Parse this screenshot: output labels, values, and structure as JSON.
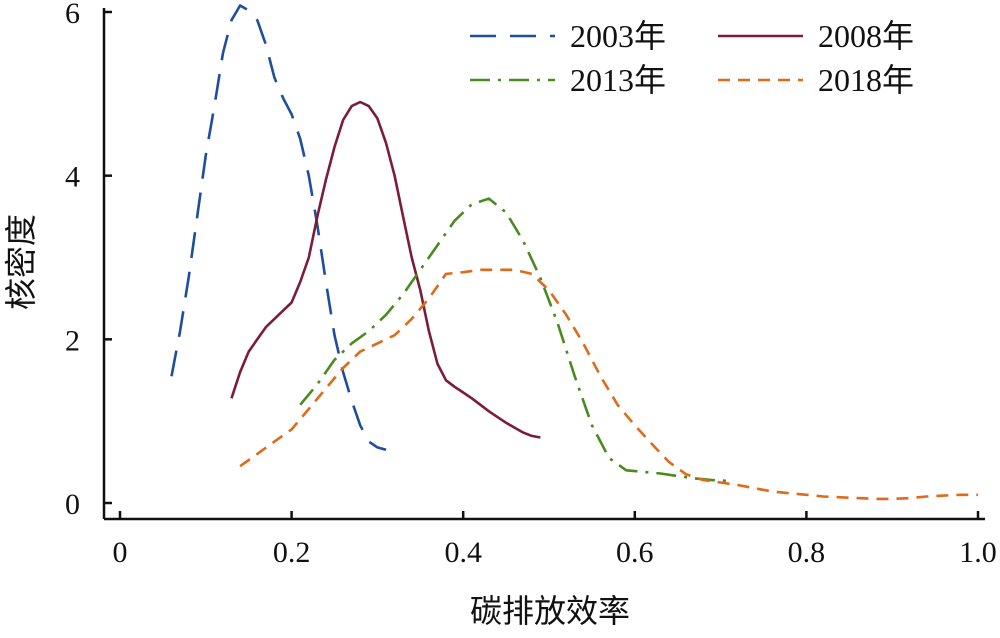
{
  "chart_data": {
    "type": "line",
    "title": "",
    "xlabel": "碳排放效率",
    "ylabel": "核密度",
    "xlim": [
      0,
      1.0
    ],
    "ylim": [
      0,
      6
    ],
    "x_ticks": [
      "0",
      "0.2",
      "0.4",
      "0.6",
      "0.8",
      "1.0"
    ],
    "y_ticks": [
      "0",
      "2",
      "4",
      "6"
    ],
    "x_tick_values": [
      0,
      0.2,
      0.4,
      0.6,
      0.8,
      1.0
    ],
    "y_tick_values": [
      0,
      2,
      4,
      6
    ],
    "grid": false,
    "legend_position": "top-right",
    "series": [
      {
        "name": "2003年",
        "color": "#1f4e9c",
        "dash": "long-dash",
        "x": [
          0.06,
          0.07,
          0.08,
          0.09,
          0.1,
          0.11,
          0.12,
          0.13,
          0.14,
          0.15,
          0.16,
          0.17,
          0.18,
          0.19,
          0.2,
          0.21,
          0.22,
          0.23,
          0.24,
          0.25,
          0.26,
          0.27,
          0.28,
          0.29,
          0.3,
          0.31
        ],
        "y": [
          1.55,
          2.1,
          2.75,
          3.5,
          4.25,
          4.85,
          5.5,
          5.9,
          6.08,
          6.02,
          5.9,
          5.6,
          5.2,
          4.95,
          4.75,
          4.45,
          4.0,
          3.4,
          2.7,
          2.05,
          1.6,
          1.25,
          0.95,
          0.75,
          0.68,
          0.65
        ]
      },
      {
        "name": "2008年",
        "color": "#7b1c3a",
        "dash": "solid",
        "x": [
          0.13,
          0.14,
          0.15,
          0.16,
          0.17,
          0.18,
          0.19,
          0.2,
          0.21,
          0.22,
          0.23,
          0.24,
          0.25,
          0.26,
          0.27,
          0.28,
          0.29,
          0.3,
          0.31,
          0.32,
          0.33,
          0.34,
          0.35,
          0.36,
          0.37,
          0.38,
          0.39,
          0.4,
          0.41,
          0.42,
          0.43,
          0.44,
          0.45,
          0.46,
          0.47,
          0.48,
          0.49
        ],
        "y": [
          1.28,
          1.6,
          1.85,
          2.0,
          2.15,
          2.25,
          2.35,
          2.45,
          2.7,
          3.0,
          3.5,
          3.95,
          4.35,
          4.68,
          4.85,
          4.9,
          4.85,
          4.7,
          4.4,
          4.0,
          3.5,
          3.0,
          2.6,
          2.1,
          1.7,
          1.5,
          1.42,
          1.35,
          1.28,
          1.2,
          1.12,
          1.05,
          0.98,
          0.92,
          0.86,
          0.82,
          0.8
        ]
      },
      {
        "name": "2013年",
        "color": "#4a8a1e",
        "dash": "dash-dot",
        "x": [
          0.21,
          0.23,
          0.25,
          0.27,
          0.29,
          0.31,
          0.33,
          0.35,
          0.37,
          0.39,
          0.41,
          0.43,
          0.45,
          0.47,
          0.49,
          0.51,
          0.53,
          0.55,
          0.57,
          0.59,
          0.61,
          0.63,
          0.65,
          0.67,
          0.69,
          0.71
        ],
        "y": [
          1.2,
          1.45,
          1.75,
          1.95,
          2.1,
          2.3,
          2.55,
          2.85,
          3.15,
          3.45,
          3.65,
          3.72,
          3.55,
          3.2,
          2.75,
          2.2,
          1.55,
          0.95,
          0.55,
          0.4,
          0.38,
          0.36,
          0.33,
          0.3,
          0.28,
          0.27
        ]
      },
      {
        "name": "2018年",
        "color": "#e06a1a",
        "dash": "short-dash",
        "x": [
          0.14,
          0.16,
          0.18,
          0.2,
          0.22,
          0.24,
          0.26,
          0.28,
          0.3,
          0.32,
          0.34,
          0.36,
          0.38,
          0.4,
          0.42,
          0.44,
          0.46,
          0.48,
          0.5,
          0.52,
          0.54,
          0.56,
          0.58,
          0.6,
          0.62,
          0.64,
          0.66,
          0.68,
          0.7,
          0.72,
          0.74,
          0.76,
          0.78,
          0.8,
          0.82,
          0.84,
          0.86,
          0.88,
          0.9,
          0.92,
          0.94,
          0.96,
          0.98,
          1.0
        ],
        "y": [
          0.45,
          0.6,
          0.75,
          0.9,
          1.15,
          1.4,
          1.65,
          1.85,
          1.95,
          2.05,
          2.25,
          2.5,
          2.8,
          2.82,
          2.85,
          2.85,
          2.85,
          2.8,
          2.6,
          2.3,
          1.95,
          1.55,
          1.2,
          0.95,
          0.72,
          0.5,
          0.35,
          0.28,
          0.25,
          0.22,
          0.18,
          0.14,
          0.12,
          0.1,
          0.08,
          0.07,
          0.06,
          0.05,
          0.05,
          0.06,
          0.08,
          0.09,
          0.1,
          0.1
        ]
      }
    ]
  }
}
